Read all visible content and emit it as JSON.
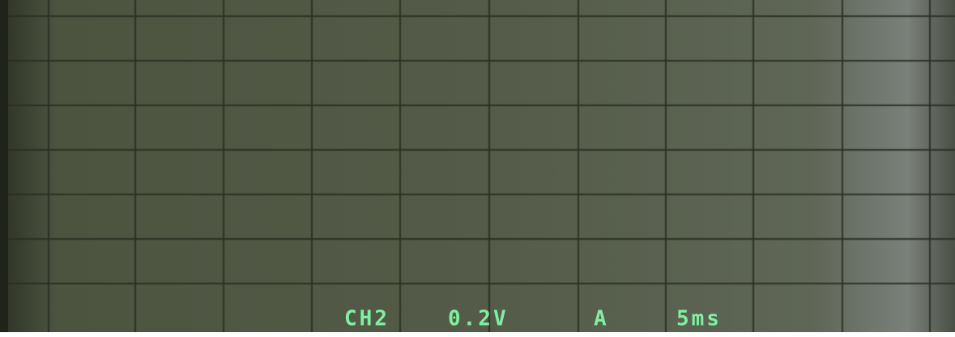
{
  "readout": {
    "channel": "CH2",
    "volts_per_div": "0.2V",
    "trigger": "A",
    "time_per_div": "5ms"
  }
}
